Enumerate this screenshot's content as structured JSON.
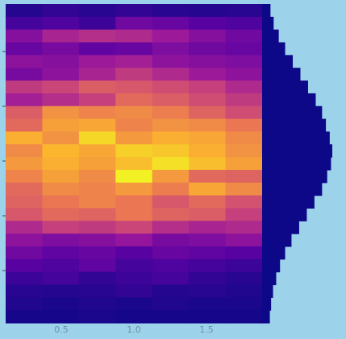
{
  "chart_data": {
    "type": "heatmap",
    "title": "",
    "xlabel": "",
    "ylabel": "",
    "x_tick_labels": [
      "0.5",
      "1.0",
      "1.5"
    ],
    "y_tick_labels": [
      "",
      "",
      "",
      "",
      "",
      ""
    ],
    "columns": 7,
    "rows": 25,
    "value_range": [
      0,
      1
    ],
    "grid": false,
    "colormap": [
      "#0d0887",
      "#5b02a3",
      "#9a179b",
      "#cb4678",
      "#eb7852",
      "#fbb32f",
      "#f0f921"
    ],
    "values": [
      [
        0.05,
        0.08,
        0.06,
        0.08,
        0.06,
        0.05,
        0.06
      ],
      [
        0.12,
        0.14,
        0.1,
        0.22,
        0.2,
        0.16,
        0.14
      ],
      [
        0.28,
        0.38,
        0.42,
        0.4,
        0.34,
        0.28,
        0.22
      ],
      [
        0.2,
        0.24,
        0.18,
        0.2,
        0.26,
        0.22,
        0.2
      ],
      [
        0.3,
        0.28,
        0.34,
        0.36,
        0.3,
        0.28,
        0.26
      ],
      [
        0.24,
        0.3,
        0.38,
        0.46,
        0.4,
        0.34,
        0.3
      ],
      [
        0.46,
        0.5,
        0.58,
        0.56,
        0.52,
        0.48,
        0.4
      ],
      [
        0.36,
        0.42,
        0.48,
        0.62,
        0.58,
        0.52,
        0.46
      ],
      [
        0.58,
        0.74,
        0.7,
        0.72,
        0.68,
        0.6,
        0.52
      ],
      [
        0.62,
        0.78,
        0.8,
        0.7,
        0.74,
        0.72,
        0.66
      ],
      [
        0.82,
        0.74,
        0.92,
        0.76,
        0.82,
        0.8,
        0.72
      ],
      [
        0.72,
        0.84,
        0.8,
        0.9,
        0.88,
        0.82,
        0.74
      ],
      [
        0.76,
        0.82,
        0.78,
        0.86,
        0.94,
        0.86,
        0.78
      ],
      [
        0.7,
        0.78,
        0.72,
        0.98,
        0.76,
        0.62,
        0.6
      ],
      [
        0.62,
        0.72,
        0.7,
        0.76,
        0.68,
        0.8,
        0.72
      ],
      [
        0.6,
        0.66,
        0.7,
        0.66,
        0.56,
        0.62,
        0.54
      ],
      [
        0.56,
        0.62,
        0.6,
        0.66,
        0.6,
        0.58,
        0.48
      ],
      [
        0.4,
        0.48,
        0.46,
        0.5,
        0.42,
        0.38,
        0.4
      ],
      [
        0.3,
        0.26,
        0.28,
        0.32,
        0.24,
        0.26,
        0.3
      ],
      [
        0.22,
        0.18,
        0.2,
        0.16,
        0.2,
        0.18,
        0.16
      ],
      [
        0.16,
        0.14,
        0.18,
        0.12,
        0.14,
        0.12,
        0.1
      ],
      [
        0.1,
        0.12,
        0.08,
        0.1,
        0.12,
        0.08,
        0.06
      ],
      [
        0.06,
        0.05,
        0.06,
        0.08,
        0.05,
        0.06,
        0.04
      ],
      [
        0.04,
        0.03,
        0.04,
        0.03,
        0.04,
        0.03,
        0.03
      ],
      [
        0.02,
        0.02,
        0.03,
        0.02,
        0.02,
        0.02,
        0.02
      ]
    ],
    "marginal_side": {
      "type": "histogram",
      "orientation": "horizontal",
      "color": "#0d0887",
      "counts": [
        0.03,
        0.08,
        0.16,
        0.26,
        0.38,
        0.5,
        0.62,
        0.74,
        0.84,
        0.9,
        0.96,
        1.0,
        0.98,
        0.92,
        0.84,
        0.72,
        0.6,
        0.48,
        0.36,
        0.26,
        0.18,
        0.12,
        0.07,
        0.04,
        0.02
      ]
    }
  }
}
